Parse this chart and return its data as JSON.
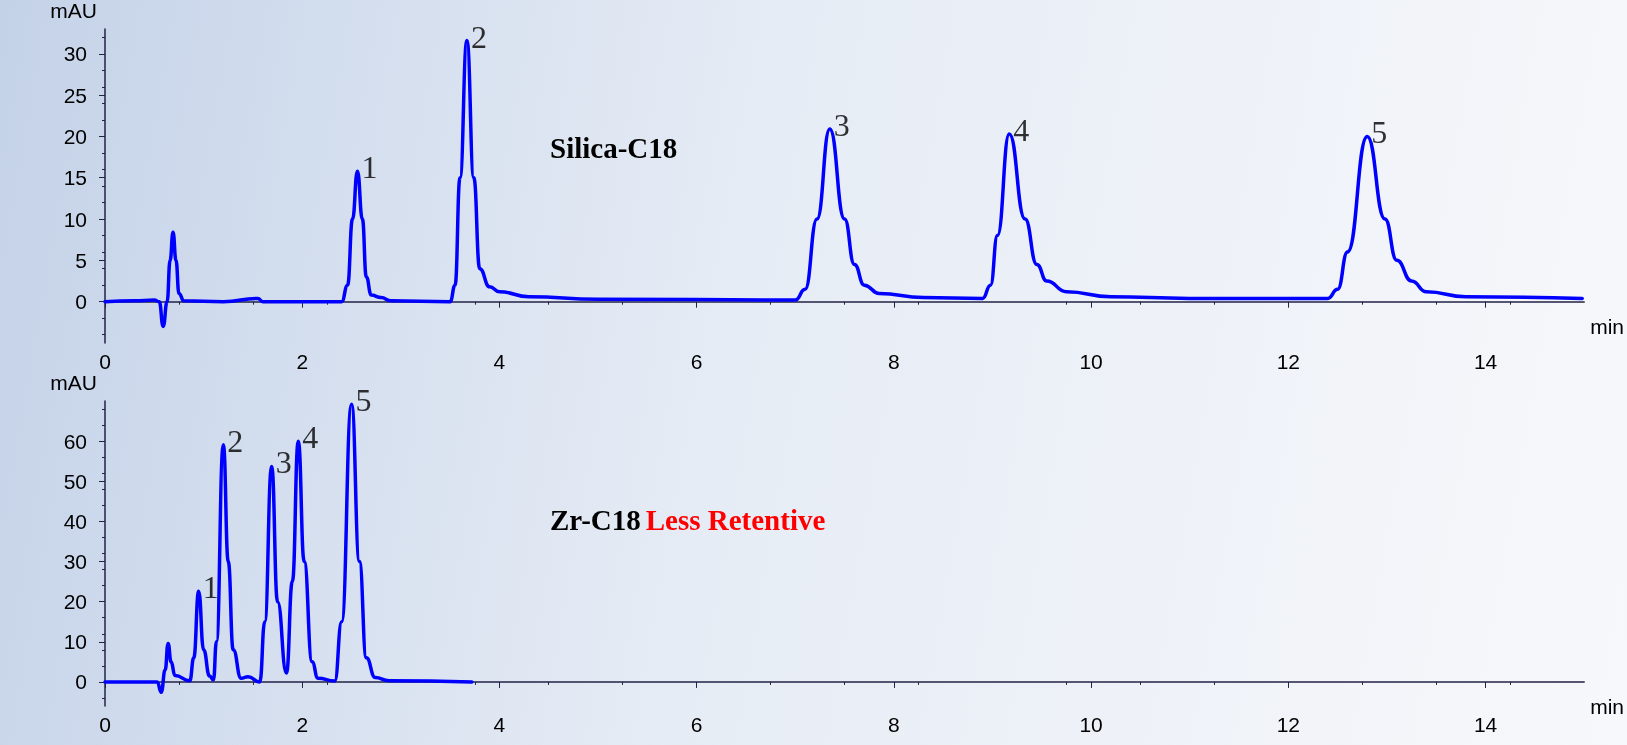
{
  "chart_data": [
    {
      "type": "line",
      "title": "Silica-C18",
      "xlabel": "min",
      "ylabel": "mAU",
      "color": "#0000ff",
      "grid": false,
      "marker": "none",
      "line_style": "solid",
      "xlim": [
        0,
        15
      ],
      "xticks": [
        0,
        2,
        4,
        6,
        8,
        10,
        12,
        14
      ],
      "ylim": [
        -5,
        33
      ],
      "yticks": [
        0,
        5,
        10,
        15,
        20,
        25,
        30
      ],
      "x": [
        0,
        0.3,
        0.5,
        0.55,
        0.59,
        0.63,
        0.66,
        0.69,
        0.72,
        0.75,
        0.8,
        1.2,
        1.55,
        1.6,
        2.4,
        2.46,
        2.51,
        2.56,
        2.61,
        2.65,
        2.7,
        2.8,
        2.9,
        3.5,
        3.55,
        3.6,
        3.67,
        3.74,
        3.8,
        3.9,
        4.0,
        4.3,
        5,
        7.0,
        7.1,
        7.22,
        7.35,
        7.5,
        7.6,
        7.7,
        7.85,
        8.3,
        8.9,
        8.98,
        9.05,
        9.17,
        9.33,
        9.45,
        9.55,
        9.75,
        10.2,
        11,
        12.4,
        12.5,
        12.6,
        12.8,
        12.98,
        13.1,
        13.25,
        13.4,
        13.8,
        14.98
      ],
      "values": [
        0,
        0.1,
        0.2,
        0,
        -3.0,
        0,
        5,
        8.4,
        5,
        1.0,
        0.1,
        0,
        0.4,
        0,
        0,
        2,
        10,
        15.8,
        10,
        3,
        0.8,
        0.5,
        0.1,
        0,
        2,
        15,
        31.6,
        15,
        4,
        1.8,
        1.2,
        0.6,
        0.3,
        0.2,
        1.5,
        10,
        20.9,
        10,
        4.5,
        2,
        1,
        0.5,
        0.4,
        2,
        8,
        20.3,
        10,
        4.5,
        2.5,
        1.2,
        0.6,
        0.4,
        0.4,
        1.5,
        6,
        20,
        10,
        5,
        2.5,
        1.2,
        0.6,
        0.4
      ],
      "annotations": [
        {
          "text": "1",
          "x": 2.56,
          "y": 15.8
        },
        {
          "text": "2",
          "x": 3.67,
          "y": 31.6
        },
        {
          "text": "3",
          "x": 7.35,
          "y": 20.9
        },
        {
          "text": "4",
          "x": 9.17,
          "y": 20.3
        },
        {
          "text": "5",
          "x": 12.8,
          "y": 20
        }
      ]
    },
    {
      "type": "line",
      "title": "Zr-C18",
      "subtitle": "Less Retentive",
      "xlabel": "min",
      "ylabel": "mAU",
      "color": "#0000ff",
      "grid": false,
      "marker": "none",
      "line_style": "solid",
      "xlim": [
        0,
        15
      ],
      "xticks": [
        0,
        2,
        4,
        6,
        8,
        10,
        12,
        14
      ],
      "ylim": [
        -6,
        70
      ],
      "yticks": [
        0,
        10,
        20,
        30,
        40,
        50,
        60
      ],
      "x": [
        0,
        0.53,
        0.57,
        0.61,
        0.64,
        0.67,
        0.71,
        0.86,
        0.9,
        0.95,
        1.0,
        1.06,
        1.1,
        1.13,
        1.2,
        1.25,
        1.3,
        1.38,
        1.45,
        1.57,
        1.62,
        1.69,
        1.75,
        1.84,
        1.9,
        1.96,
        2.02,
        2.1,
        2.16,
        2.33,
        2.4,
        2.5,
        2.58,
        2.65,
        2.74,
        2.88,
        3.72
      ],
      "values": [
        0,
        0,
        -2.6,
        3,
        9.6,
        5,
        1.6,
        0.3,
        6,
        22.6,
        8,
        1.5,
        0.5,
        10,
        59.1,
        30,
        8,
        0.9,
        1.3,
        0,
        15,
        53.7,
        20,
        2.2,
        25,
        60,
        30,
        5,
        0.9,
        0.2,
        15,
        69.2,
        30,
        6,
        1.1,
        0.3,
        0
      ],
      "annotations": [
        {
          "text": "1",
          "x": 0.95,
          "y": 22.6
        },
        {
          "text": "2",
          "x": 1.2,
          "y": 59.1
        },
        {
          "text": "3",
          "x": 1.69,
          "y": 53.7
        },
        {
          "text": "4",
          "x": 1.96,
          "y": 60
        },
        {
          "text": "5",
          "x": 2.5,
          "y": 69.2
        }
      ]
    }
  ]
}
